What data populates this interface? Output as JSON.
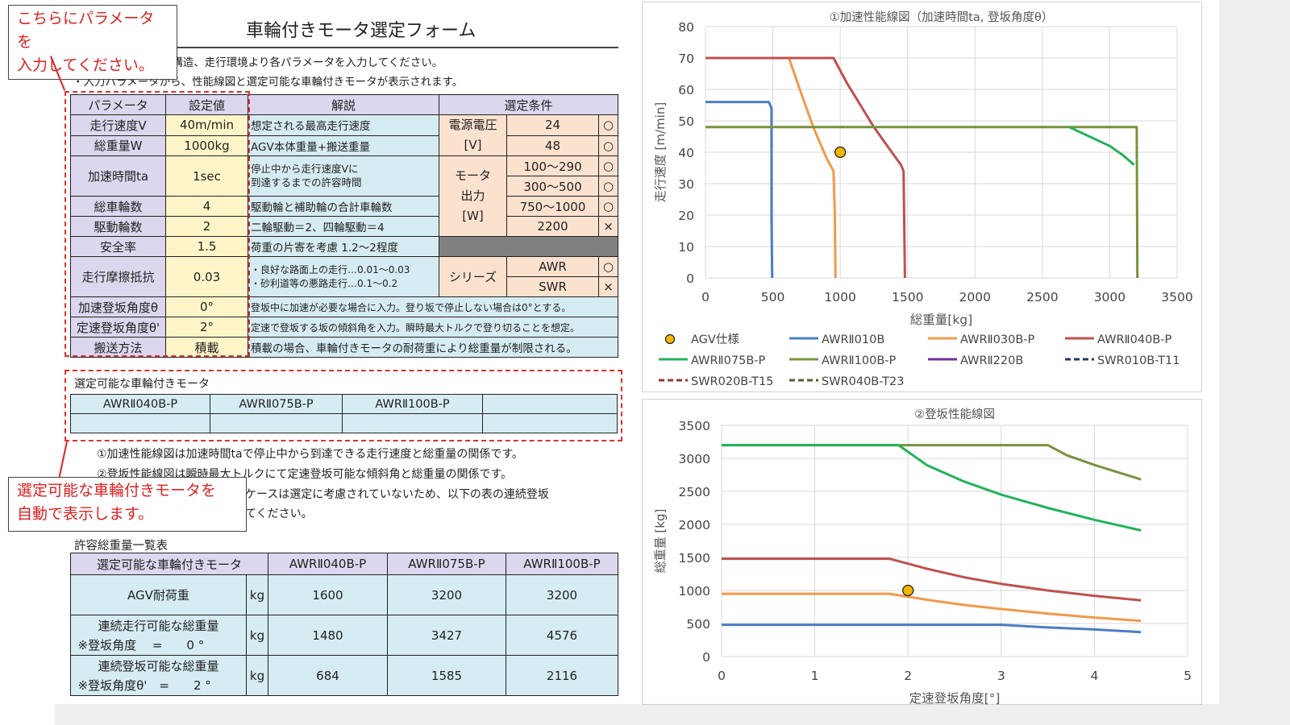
{
  "form": {
    "title": "車輪付きモータ選定フォーム",
    "intro_line1": "・AGVの要求仕様や構造、走行環境より各パラメータを入力してください。",
    "intro_line2": "・入力パラメータから、性能線図と選定可能な車輪付きモータが表示されます。"
  },
  "callouts": {
    "input": [
      "こちらにパラメータを",
      "入力してください。"
    ],
    "auto": [
      "選定可能な車輪付きモータを",
      "自動で表示します。"
    ]
  },
  "headers": {
    "param": "パラメータ",
    "value": "設定値",
    "desc": "解説",
    "cond": "選定条件"
  },
  "params": [
    {
      "name": "走行速度V",
      "value": "40m/min",
      "desc": "想定される最高走行速度"
    },
    {
      "name": "総重量W",
      "value": "1000kg",
      "desc": "AGV本体重量+搬送重量"
    },
    {
      "name": "加速時間ta",
      "value": "1sec",
      "desc1": "停止中から走行速度Vに",
      "desc2": "到達するまでの許容時間"
    },
    {
      "name": "総車輪数",
      "value": "4",
      "desc": "駆動輪と補助輪の合計車輪数"
    },
    {
      "name": "駆動輪数",
      "value": "2",
      "desc": "二輪駆動＝2、四輪駆動＝4"
    },
    {
      "name": "安全率",
      "value": "1.5",
      "desc": "荷重の片寄を考慮 1.2～2程度"
    },
    {
      "name": "走行摩擦抵抗",
      "value": "0.03",
      "desc1": "・良好な路面上の走行…0.01～0.03",
      "desc2": "・砂利道等の悪路走行…0.1～0.2"
    },
    {
      "name": "加速登坂角度θ",
      "value": "0°",
      "desc": "登坂中に加速が必要な場合に入力。登り坂で停止しない場合は0°とする。"
    },
    {
      "name": "定速登坂角度θ'",
      "value": "2°",
      "desc": "定速で登坂する坂の傾斜角を入力。瞬時最大トルクで登り切ることを想定。"
    },
    {
      "name": "搬送方法",
      "value": "積載",
      "desc": "積載の場合、車輪付きモータの耐荷重により総重量が制限される。"
    }
  ],
  "conditions": {
    "voltage_label": [
      "電源電圧",
      "[V]"
    ],
    "voltages": [
      {
        "v": "24",
        "m": "○"
      },
      {
        "v": "48",
        "m": "○"
      }
    ],
    "output_label": [
      "モータ",
      "出力",
      "[W]"
    ],
    "outputs": [
      {
        "v": "100～290",
        "m": "○"
      },
      {
        "v": "300～500",
        "m": "○"
      },
      {
        "v": "750～1000",
        "m": "○"
      },
      {
        "v": "2200",
        "m": "×"
      }
    ],
    "series_label": "シリーズ",
    "series": [
      {
        "v": "AWR",
        "m": "○"
      },
      {
        "v": "SWR",
        "m": "×"
      }
    ]
  },
  "selectable": {
    "label": "選定可能な車輪付きモータ",
    "motors": [
      "AWRⅡ040B-P",
      "AWRⅡ075B-P",
      "AWRⅡ100B-P",
      ""
    ]
  },
  "notes": [
    "①加速性能線図は加速時間taで停止中から到達できる走行速度と総重量の関係です。",
    "②登坂性能線図は瞬時最大トルクにて定速登坂可能な傾斜角と総重量の関係です。",
    "ケースは選定に考慮されていないため、以下の表の連続登坂",
    "てください。"
  ],
  "allowable": {
    "label": "許容総重量一覧表",
    "header": "選定可能な車輪付きモータ",
    "motors": [
      "AWRⅡ040B-P",
      "AWRⅡ075B-P",
      "AWRⅡ100B-P"
    ],
    "rows": [
      {
        "label1": "AGV耐荷重",
        "label2": "",
        "unit": "kg",
        "values": [
          "1600",
          "3200",
          "3200"
        ]
      },
      {
        "label1": "連続走行可能な総重量",
        "label2": "※登坂角度　 =　　0 °",
        "unit": "kg",
        "values": [
          "1480",
          "3427",
          "4576"
        ]
      },
      {
        "label1": "連続登坂可能な総重量",
        "label2": "※登坂角度θ'　=　　2 °",
        "unit": "kg",
        "values": [
          "684",
          "1585",
          "2116"
        ]
      }
    ]
  },
  "chart_data": [
    {
      "type": "line",
      "title": "①加速性能線図（加速時間ta, 登坂角度θ）",
      "xlabel": "総重量[kg]",
      "ylabel": "走行速度 [m/min]",
      "xlim": [
        0,
        3500
      ],
      "ylim": [
        0,
        80
      ],
      "xticks": [
        0,
        500,
        1000,
        1500,
        2000,
        2500,
        3000,
        3500
      ],
      "yticks": [
        0,
        10,
        20,
        30,
        40,
        50,
        60,
        70,
        80
      ],
      "grid": true,
      "legend_position": "bottom",
      "marker": {
        "name": "AGV仕様",
        "x": 1000,
        "y": 40,
        "color": "#f2b600"
      },
      "legend": [
        {
          "name": "AGV仕様",
          "color": "#f2b600",
          "style": "marker"
        },
        {
          "name": "AWRⅡ010B",
          "color": "#4a7ec4",
          "style": "solid"
        },
        {
          "name": "AWRⅡ030B-P",
          "color": "#f2994a",
          "style": "solid"
        },
        {
          "name": "AWRⅡ040B-P",
          "color": "#c0504d",
          "style": "solid"
        },
        {
          "name": "AWRⅡ075B-P",
          "color": "#22b35a",
          "style": "solid"
        },
        {
          "name": "AWRⅡ100B-P",
          "color": "#77933c",
          "style": "solid"
        },
        {
          "name": "AWRⅡ220B",
          "color": "#7030a0",
          "style": "solid"
        },
        {
          "name": "SWR010B-T11",
          "color": "#1f3864",
          "style": "dash"
        },
        {
          "name": "SWR020B-T15",
          "color": "#943634",
          "style": "dash"
        },
        {
          "name": "SWR040B-T23",
          "color": "#4f6228",
          "style": "dash"
        }
      ],
      "series": [
        {
          "name": "AWRⅡ010B",
          "color": "#4a7ec4",
          "x": [
            0,
            470,
            490,
            490,
            495
          ],
          "y": [
            56,
            56,
            54,
            20,
            0
          ]
        },
        {
          "name": "AWRⅡ030B-P",
          "color": "#f2994a",
          "x": [
            0,
            620,
            700,
            800,
            900,
            950,
            960,
            965
          ],
          "y": [
            70,
            70,
            60,
            48,
            38,
            34,
            20,
            0
          ]
        },
        {
          "name": "AWRⅡ040B-P",
          "color": "#c0504d",
          "x": [
            0,
            950,
            1050,
            1150,
            1250,
            1350,
            1450,
            1470,
            1480
          ],
          "y": [
            70,
            70,
            62,
            55,
            48,
            42,
            36,
            34,
            0
          ]
        },
        {
          "name": "AWRⅡ100B-P",
          "color": "#77933c",
          "x": [
            0,
            3200,
            3205
          ],
          "y": [
            48,
            48,
            0
          ]
        },
        {
          "name": "AWRⅡ075B-P",
          "color": "#22b35a",
          "x": [
            2700,
            2850,
            3000,
            3100,
            3180
          ],
          "y": [
            48,
            45,
            42,
            39,
            36
          ]
        }
      ]
    },
    {
      "type": "line",
      "title": "②登坂性能線図",
      "xlabel": "定速登坂角度[°]",
      "ylabel": "総重量 [kg]",
      "xlim": [
        0,
        5
      ],
      "ylim": [
        0,
        3500
      ],
      "xticks": [
        0,
        1,
        2,
        3,
        4,
        5
      ],
      "yticks": [
        0,
        500,
        1000,
        1500,
        2000,
        2500,
        3000,
        3500
      ],
      "grid": true,
      "marker": {
        "name": "AGV仕様",
        "x": 2,
        "y": 1000,
        "color": "#f2b600"
      },
      "series": [
        {
          "name": "AWRⅡ100B-P",
          "color": "#77933c",
          "x": [
            0,
            3.5,
            3.7,
            4.0,
            4.5
          ],
          "y": [
            3200,
            3200,
            3050,
            2900,
            2680
          ]
        },
        {
          "name": "AWRⅡ075B-P",
          "color": "#22b35a",
          "x": [
            0,
            1.9,
            2.2,
            2.6,
            3.0,
            3.5,
            4.0,
            4.5
          ],
          "y": [
            3200,
            3200,
            2900,
            2650,
            2450,
            2250,
            2070,
            1910
          ]
        },
        {
          "name": "AWRⅡ040B-P",
          "color": "#c0504d",
          "x": [
            0,
            1.8,
            2.2,
            2.6,
            3.0,
            3.5,
            4.0,
            4.5
          ],
          "y": [
            1480,
            1480,
            1330,
            1200,
            1100,
            1000,
            920,
            850
          ]
        },
        {
          "name": "AWRⅡ030B-P",
          "color": "#f2994a",
          "x": [
            0,
            1.8,
            2.2,
            2.6,
            3.0,
            3.5,
            4.0,
            4.5
          ],
          "y": [
            950,
            950,
            860,
            780,
            720,
            650,
            590,
            540
          ]
        },
        {
          "name": "AWRⅡ010B",
          "color": "#4a7ec4",
          "x": [
            0,
            3.0,
            3.5,
            4.0,
            4.5
          ],
          "y": [
            480,
            480,
            440,
            410,
            370
          ]
        }
      ]
    }
  ]
}
